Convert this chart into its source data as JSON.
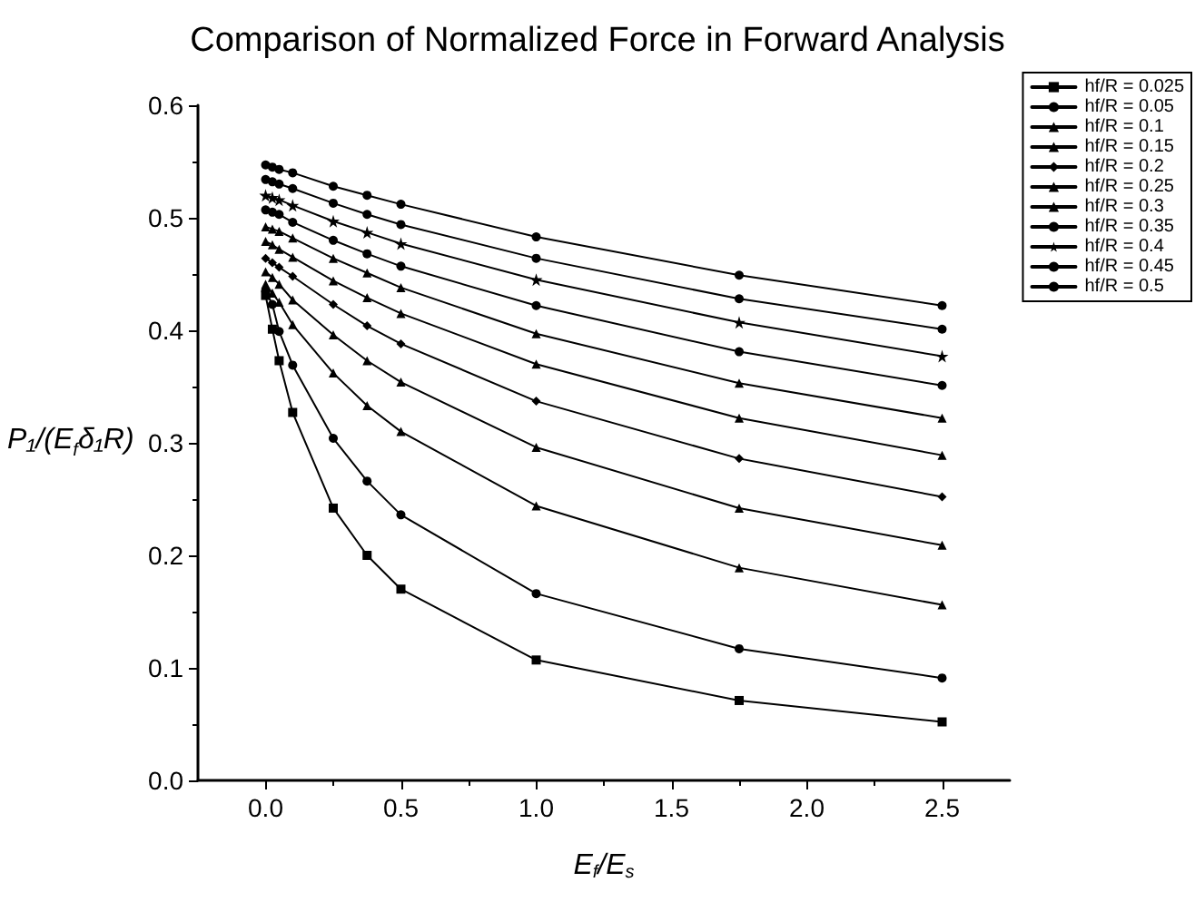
{
  "chart_data": {
    "type": "line",
    "title": "Comparison of Normalized Force in Forward Analysis",
    "xlabel": "E$_{f}$/E$_{s}$",
    "ylabel": "P₁/(E$_{f}$δ₁R)",
    "x": [
      0,
      0.025,
      0.05,
      0.1,
      0.25,
      0.375,
      0.5,
      1,
      1.75,
      2.5
    ],
    "xlim": [
      -0.25,
      2.75
    ],
    "xticks": [
      {
        "value": 0,
        "label": "0.0"
      },
      0.5,
      {
        "value": 1,
        "label": "1.0"
      },
      1.5,
      {
        "value": 2,
        "label": "2.0"
      },
      2.5
    ],
    "ylim": [
      0,
      0.6
    ],
    "yticks": [
      {
        "value": 0,
        "label": "0.0"
      },
      0.1,
      0.2,
      0.3,
      0.4,
      0.5,
      0.6
    ],
    "grid": false,
    "legend": "top right",
    "line_style": "solid",
    "series": [
      {
        "name": "hf/R = 0.025",
        "color": "#000000",
        "marker": "square",
        "values": [
          0.431,
          0.401,
          0.373,
          0.327,
          0.242,
          0.2,
          0.17,
          0.107,
          0.071,
          0.052
        ]
      },
      {
        "name": "hf/R = 0.05",
        "color": "#000000",
        "marker": "circle",
        "values": [
          0.435,
          0.423,
          0.399,
          0.369,
          0.304,
          0.266,
          0.236,
          0.166,
          0.117,
          0.091
        ]
      },
      {
        "name": "hf/R = 0.1",
        "color": "#000000",
        "marker": "triangle",
        "values": [
          0.441,
          0.433,
          0.425,
          0.405,
          0.362,
          0.333,
          0.31,
          0.244,
          0.189,
          0.156
        ]
      },
      {
        "name": "hf/R = 0.15",
        "color": "#000000",
        "marker": "triangle",
        "values": [
          0.452,
          0.447,
          0.441,
          0.427,
          0.396,
          0.373,
          0.354,
          0.296,
          0.242,
          0.209
        ]
      },
      {
        "name": "hf/R = 0.2",
        "color": "#000000",
        "marker": "diamond",
        "values": [
          0.464,
          0.46,
          0.456,
          0.448,
          0.423,
          0.404,
          0.388,
          0.337,
          0.286,
          0.252
        ]
      },
      {
        "name": "hf/R = 0.25",
        "color": "#000000",
        "marker": "triangle",
        "values": [
          0.479,
          0.476,
          0.472,
          0.465,
          0.444,
          0.429,
          0.415,
          0.37,
          0.322,
          0.289
        ]
      },
      {
        "name": "hf/R = 0.3",
        "color": "#000000",
        "marker": "triangle",
        "values": [
          0.492,
          0.49,
          0.488,
          0.482,
          0.464,
          0.451,
          0.438,
          0.397,
          0.353,
          0.322
        ]
      },
      {
        "name": "hf/R = 0.35",
        "color": "#000000",
        "marker": "circle",
        "values": [
          0.507,
          0.505,
          0.503,
          0.496,
          0.48,
          0.468,
          0.457,
          0.422,
          0.381,
          0.351
        ]
      },
      {
        "name": "hf/R = 0.4",
        "color": "#000000",
        "marker": "star",
        "values": [
          0.52,
          0.518,
          0.516,
          0.511,
          0.497,
          0.487,
          0.477,
          0.445,
          0.407,
          0.377
        ]
      },
      {
        "name": "hf/R = 0.45",
        "color": "#000000",
        "marker": "circle",
        "values": [
          0.534,
          0.532,
          0.53,
          0.526,
          0.513,
          0.503,
          0.494,
          0.464,
          0.428,
          0.401
        ]
      },
      {
        "name": "hf/R = 0.5",
        "color": "#000000",
        "marker": "circle",
        "values": [
          0.547,
          0.545,
          0.543,
          0.54,
          0.528,
          0.52,
          0.512,
          0.483,
          0.449,
          0.422
        ]
      }
    ]
  }
}
